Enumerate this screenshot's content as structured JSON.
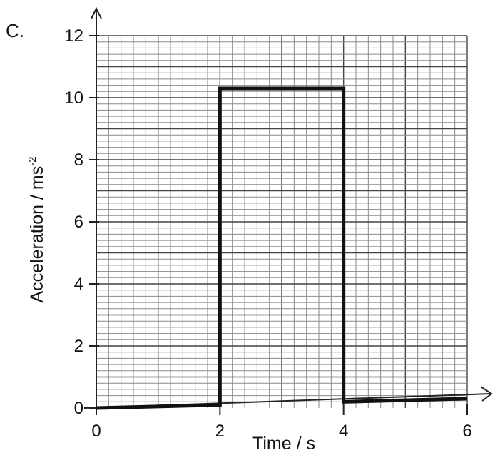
{
  "question_label": "C.",
  "chart_data": {
    "type": "line",
    "x": [
      0,
      2,
      2,
      4,
      4,
      6
    ],
    "y": [
      0,
      0.1,
      10.3,
      10.3,
      0.2,
      0.3
    ],
    "xlabel": "Time / s",
    "ylabel": "Acceleration / ms",
    "ylabel_superscript": "-2",
    "xticks": [
      "0",
      "2",
      "4",
      "6"
    ],
    "yticks": [
      "0",
      "2",
      "4",
      "6",
      "8",
      "10",
      "12"
    ],
    "xlim": [
      0,
      6
    ],
    "ylim": [
      0,
      12
    ],
    "grid": true,
    "colors": {
      "line": "#111111",
      "grid": "#8a8a8a"
    }
  }
}
